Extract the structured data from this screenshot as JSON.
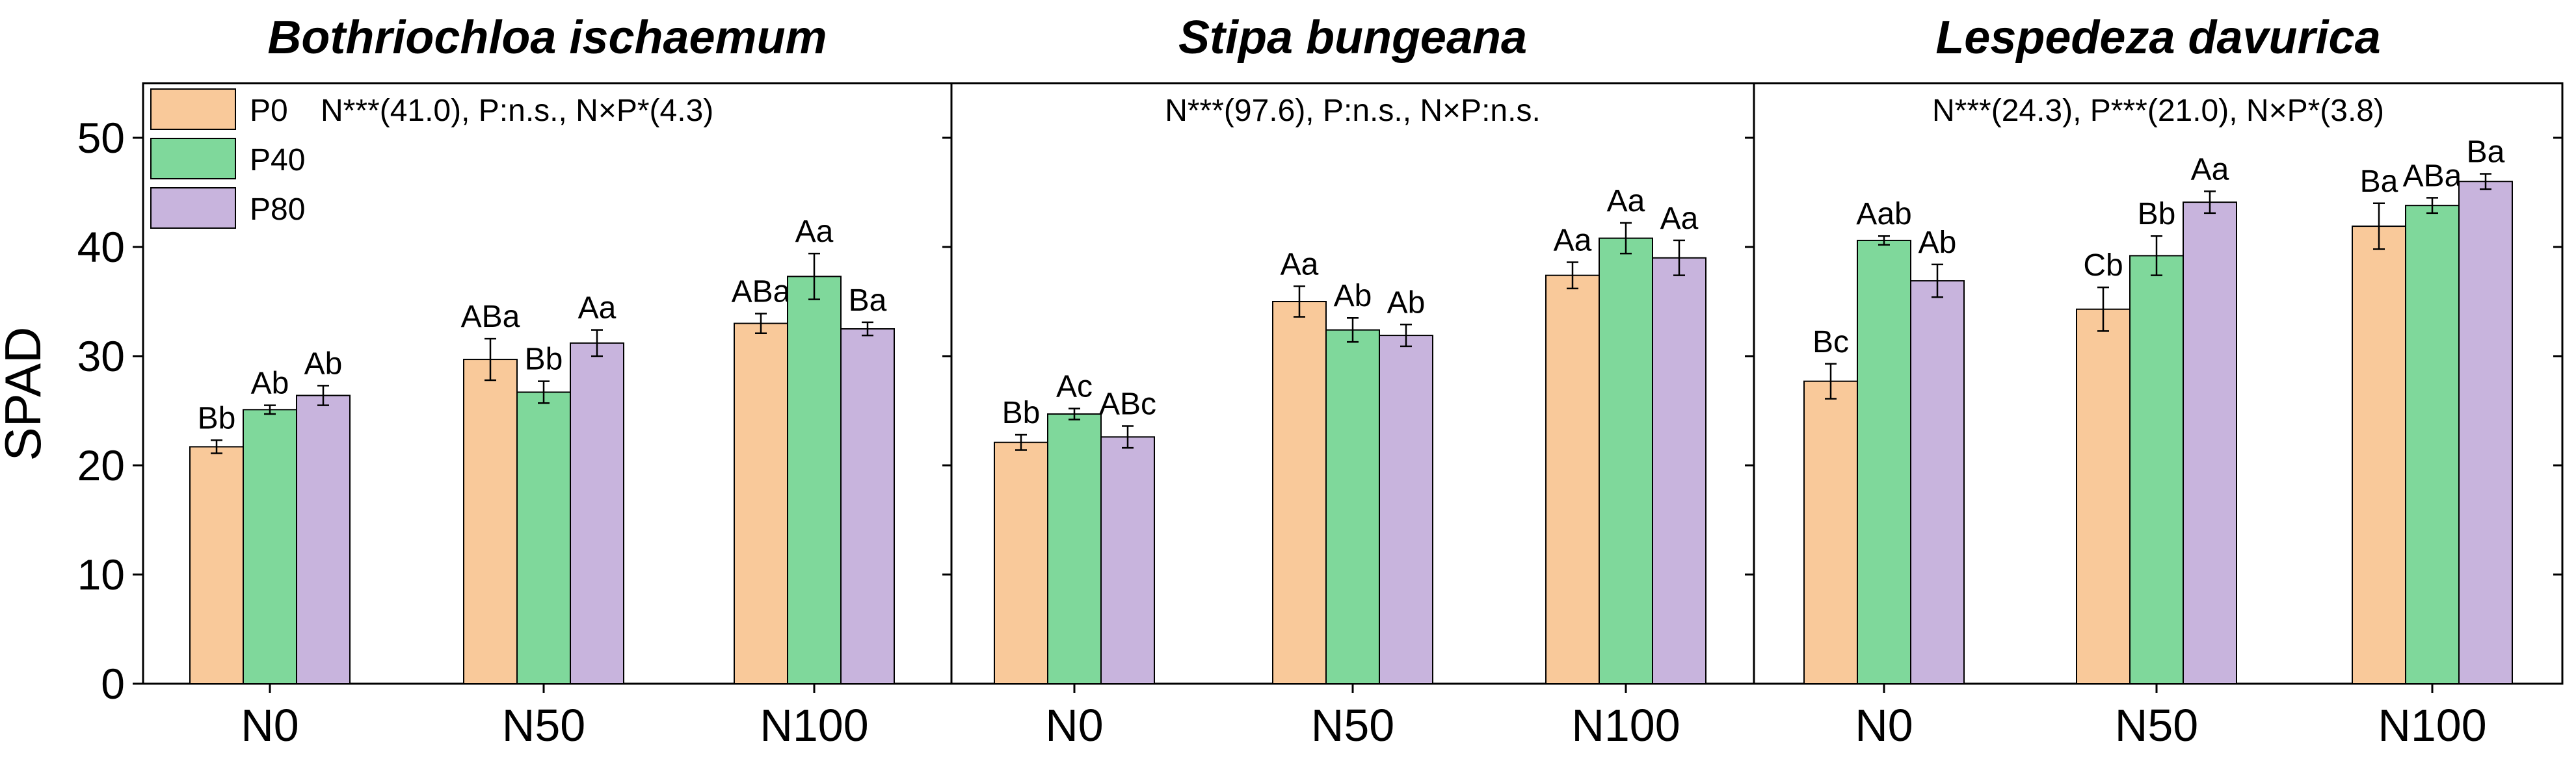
{
  "chart_data": {
    "type": "bar",
    "ylabel": "SPAD",
    "ylim": [
      0,
      55
    ],
    "yticks": [
      0,
      10,
      20,
      30,
      40,
      50
    ],
    "categories": [
      "N0",
      "N50",
      "N100"
    ],
    "legend": {
      "placement": "top-left",
      "items": [
        "P0",
        "P40",
        "P80"
      ]
    },
    "colors": {
      "P0": "#f9c99a",
      "P40": "#7fd89b",
      "P80": "#c8b4dd",
      "stroke": "#000000"
    },
    "panels": [
      {
        "title": "Bothriochloa ischaemum",
        "stats": "N***(41.0), P:n.s., N×P*(4.3)",
        "series": [
          {
            "name": "P0",
            "values": [
              21.7,
              29.7,
              33.0
            ],
            "errors": [
              0.6,
              1.9,
              0.9
            ],
            "labels": [
              "Bb",
              "ABa",
              "ABa"
            ]
          },
          {
            "name": "P40",
            "values": [
              25.1,
              26.7,
              37.3
            ],
            "errors": [
              0.4,
              1.0,
              2.1
            ],
            "labels": [
              "Ab",
              "Bb",
              "Aa"
            ]
          },
          {
            "name": "P80",
            "values": [
              26.4,
              31.2,
              32.5
            ],
            "errors": [
              0.9,
              1.2,
              0.6
            ],
            "labels": [
              "Ab",
              "Aa",
              "Ba"
            ]
          }
        ]
      },
      {
        "title": "Stipa bungeana",
        "stats": "N***(97.6), P:n.s., N×P:n.s.",
        "series": [
          {
            "name": "P0",
            "values": [
              22.1,
              35.0,
              37.4
            ],
            "errors": [
              0.7,
              1.4,
              1.2
            ],
            "labels": [
              "Bb",
              "Aa",
              "Aa"
            ]
          },
          {
            "name": "P40",
            "values": [
              24.7,
              32.4,
              40.8
            ],
            "errors": [
              0.5,
              1.1,
              1.4
            ],
            "labels": [
              "Ac",
              "Ab",
              "Aa"
            ]
          },
          {
            "name": "P80",
            "values": [
              22.6,
              31.9,
              39.0
            ],
            "errors": [
              1.0,
              1.0,
              1.6
            ],
            "labels": [
              "ABc",
              "Ab",
              "Aa"
            ]
          }
        ]
      },
      {
        "title": "Lespedeza davurica",
        "stats": "N***(24.3), P***(21.0), N×P*(3.8)",
        "series": [
          {
            "name": "P0",
            "values": [
              27.7,
              34.3,
              41.9
            ],
            "errors": [
              1.6,
              2.0,
              2.1
            ],
            "labels": [
              "Bc",
              "Cb",
              "Ba"
            ]
          },
          {
            "name": "P40",
            "values": [
              40.6,
              39.2,
              43.8
            ],
            "errors": [
              0.4,
              1.8,
              0.7
            ],
            "labels": [
              "Aab",
              "Bb",
              "ABa"
            ]
          },
          {
            "name": "P80",
            "values": [
              36.9,
              44.1,
              46.0
            ],
            "errors": [
              1.5,
              1.0,
              0.7
            ],
            "labels": [
              "Ab",
              "Aa",
              "Ba"
            ]
          }
        ]
      }
    ]
  }
}
